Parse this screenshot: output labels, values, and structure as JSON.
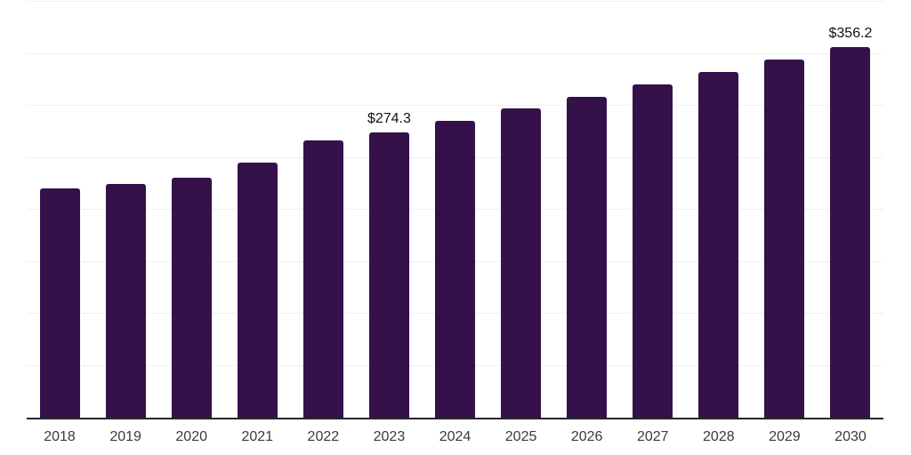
{
  "chart_data": {
    "type": "bar",
    "categories": [
      "2018",
      "2019",
      "2020",
      "2021",
      "2022",
      "2023",
      "2024",
      "2025",
      "2026",
      "2027",
      "2028",
      "2029",
      "2030"
    ],
    "values": [
      220.6,
      224.8,
      230.4,
      245.3,
      266.4,
      274.3,
      285.9,
      297.1,
      308.9,
      320.2,
      332.9,
      344.4,
      356.2
    ],
    "value_labels": [
      null,
      null,
      null,
      null,
      null,
      "$274.3",
      null,
      null,
      null,
      null,
      null,
      null,
      "$356.2"
    ],
    "ylim": [
      0,
      400
    ],
    "grid_step": 50,
    "grid": "horizontal",
    "legend_visible": false,
    "y_tick_labels_visible": false,
    "colors": {
      "bar": "#35114a",
      "gridline": "#f0f0f0",
      "axis_line": "#262626",
      "tick_label": "#3a3a3a",
      "value_label": "#111111",
      "background": "#ffffff"
    }
  }
}
